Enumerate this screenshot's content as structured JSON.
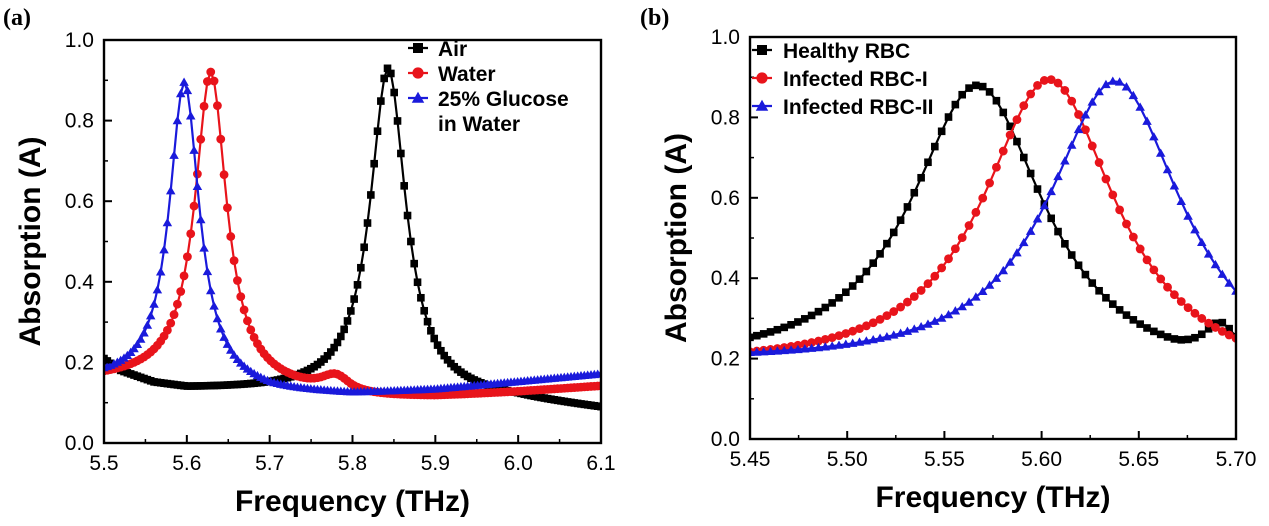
{
  "chart_data": [
    {
      "type": "line",
      "panel_label": "(a)",
      "xlabel": "Frequency (THz)",
      "ylabel": "Absorption (A)",
      "xlim": [
        5.5,
        6.1
      ],
      "ylim": [
        0.0,
        1.0
      ],
      "xticks": [
        "5.5",
        "5.6",
        "5.7",
        "5.8",
        "5.9",
        "6.0",
        "6.1"
      ],
      "yticks": [
        "0.0",
        "0.2",
        "0.4",
        "0.6",
        "0.8",
        "1.0"
      ],
      "legend_position": "top-right",
      "x_range": [
        5.5,
        6.1
      ],
      "n_points": 150,
      "series": [
        {
          "name": "Air",
          "color": "#000000",
          "marker": "square",
          "baseline": [
            [
              5.5,
              0.205
            ],
            [
              5.52,
              0.175
            ],
            [
              5.56,
              0.145
            ],
            [
              5.6,
              0.132
            ],
            [
              5.7,
              0.127
            ],
            [
              5.8,
              0.125
            ],
            [
              6.0,
              0.103
            ],
            [
              6.1,
              0.082
            ]
          ],
          "peaks": [
            {
              "center": 5.843,
              "height": 0.81,
              "width": 0.026
            }
          ]
        },
        {
          "name": "Water",
          "color": "#e8141b",
          "marker": "circle",
          "baseline": [
            [
              5.5,
              0.155
            ],
            [
              5.6,
              0.155
            ],
            [
              5.7,
              0.13
            ],
            [
              5.8,
              0.108
            ],
            [
              5.9,
              0.112
            ],
            [
              6.0,
              0.125
            ],
            [
              6.1,
              0.14
            ]
          ],
          "peaks": [
            {
              "center": 5.629,
              "height": 0.772,
              "width": 0.023
            },
            {
              "center": 5.78,
              "height": 0.042,
              "width": 0.022
            }
          ]
        },
        {
          "name": "25% Glucose\nin Water",
          "color": "#1a1adb",
          "marker": "triangle",
          "baseline": [
            [
              5.5,
              0.15
            ],
            [
              5.6,
              0.14
            ],
            [
              5.7,
              0.12
            ],
            [
              5.8,
              0.118
            ],
            [
              5.9,
              0.13
            ],
            [
              6.0,
              0.15
            ],
            [
              6.1,
              0.17
            ]
          ],
          "peaks": [
            {
              "center": 5.597,
              "height": 0.755,
              "width": 0.022
            }
          ]
        }
      ]
    },
    {
      "type": "line",
      "panel_label": "(b)",
      "xlabel": "Frequency (THz)",
      "ylabel": "Absorption (A)",
      "xlim": [
        5.45,
        5.7
      ],
      "ylim": [
        0.0,
        1.0
      ],
      "xticks": [
        "5.45",
        "5.50",
        "5.55",
        "5.60",
        "5.65",
        "5.70"
      ],
      "yticks": [
        "0.0",
        "0.2",
        "0.4",
        "0.6",
        "0.8",
        "1.0"
      ],
      "legend_position": "top-left",
      "x_range": [
        5.45,
        5.7
      ],
      "n_points": 72,
      "series": [
        {
          "name": "Healthy RBC",
          "color": "#000000",
          "marker": "square",
          "baseline": [
            [
              5.45,
              0.17
            ],
            [
              5.6,
              0.15
            ],
            [
              5.67,
              0.13
            ],
            [
              5.7,
              0.14
            ]
          ],
          "peaks": [
            {
              "center": 5.567,
              "height": 0.725,
              "width": 0.042
            },
            {
              "center": 5.692,
              "height": 0.08,
              "width": 0.01
            }
          ]
        },
        {
          "name": "Infected RBC-I",
          "color": "#e8141b",
          "marker": "circle",
          "baseline": [
            [
              5.45,
              0.165
            ],
            [
              5.6,
              0.145
            ],
            [
              5.7,
              0.13
            ]
          ],
          "peaks": [
            {
              "center": 5.604,
              "height": 0.75,
              "width": 0.042
            }
          ]
        },
        {
          "name": "Infected RBC-II",
          "color": "#1a1adb",
          "marker": "triangle",
          "baseline": [
            [
              5.45,
              0.18
            ],
            [
              5.6,
              0.16
            ],
            [
              5.7,
              0.135
            ]
          ],
          "peaks": [
            {
              "center": 5.638,
              "height": 0.74,
              "width": 0.042
            }
          ]
        }
      ]
    }
  ]
}
